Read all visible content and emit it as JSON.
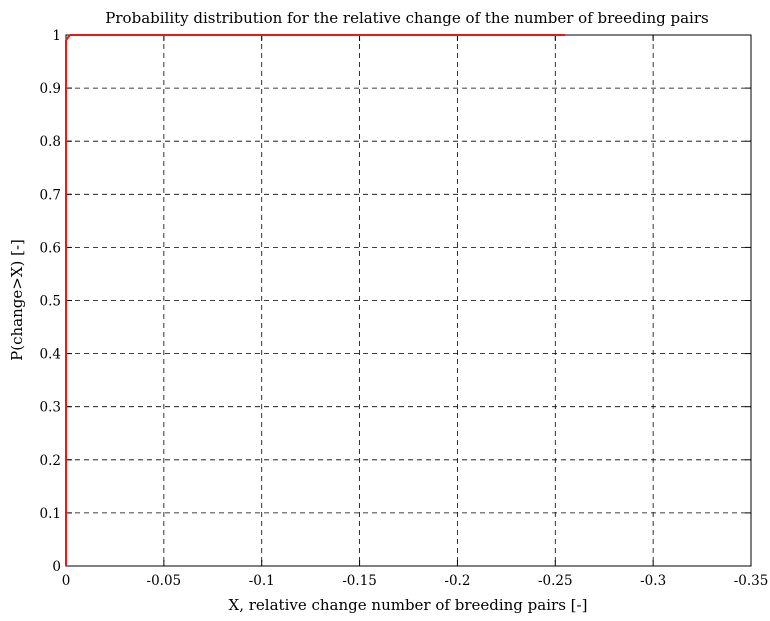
{
  "chart_data": {
    "type": "line",
    "title": "Probability distribution for the relative change of the number of breeding pairs",
    "xlabel": "X, relative change number of breeding pairs [-]",
    "ylabel": "P(change>X) [-]",
    "xlim": [
      0,
      -0.35
    ],
    "ylim": [
      0,
      1
    ],
    "x_direction": "reversed",
    "grid": true,
    "x_ticks": [
      0,
      -0.05,
      -0.1,
      -0.15,
      -0.2,
      -0.25,
      -0.3,
      -0.35
    ],
    "x_tick_labels": [
      "0",
      "-0.05",
      "-0.1",
      "-0.15",
      "-0.2",
      "-0.25",
      "-0.3",
      "-0.35"
    ],
    "y_ticks": [
      0,
      0.1,
      0.2,
      0.3,
      0.4,
      0.5,
      0.6,
      0.7,
      0.8,
      0.9,
      1
    ],
    "y_tick_labels": [
      "0",
      "0.1",
      "0.2",
      "0.3",
      "0.4",
      "0.5",
      "0.6",
      "0.7",
      "0.8",
      "0.9",
      "1"
    ],
    "series": [
      {
        "color": "#e41a1c",
        "x": [
          0,
          0,
          -0.002,
          -0.255
        ],
        "y": [
          0,
          0.99,
          1,
          1
        ]
      }
    ]
  }
}
